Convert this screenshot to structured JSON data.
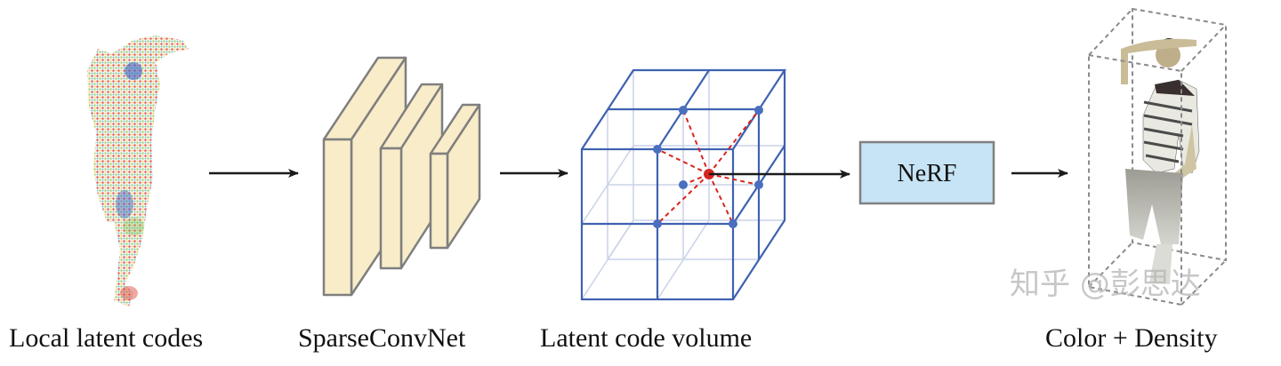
{
  "stages": [
    {
      "label": "Local latent codes"
    },
    {
      "label": "SparseConvNet"
    },
    {
      "label": "Latent code volume"
    },
    {
      "label": "Color + Density"
    }
  ],
  "nerf_box": {
    "label": "NeRF",
    "fill": "#c6e4f5",
    "stroke": "#808080"
  },
  "watermark": "知乎 @彭思达",
  "colors": {
    "slab_fill": "#f8ecc9",
    "slab_stroke": "#7f7f7f",
    "grid_blue": "#3f62b0",
    "grid_light": "#c9d2e8",
    "node_blue": "#4a6fbf",
    "center_red": "#d7261f",
    "arrow": "#1a1a1a"
  }
}
